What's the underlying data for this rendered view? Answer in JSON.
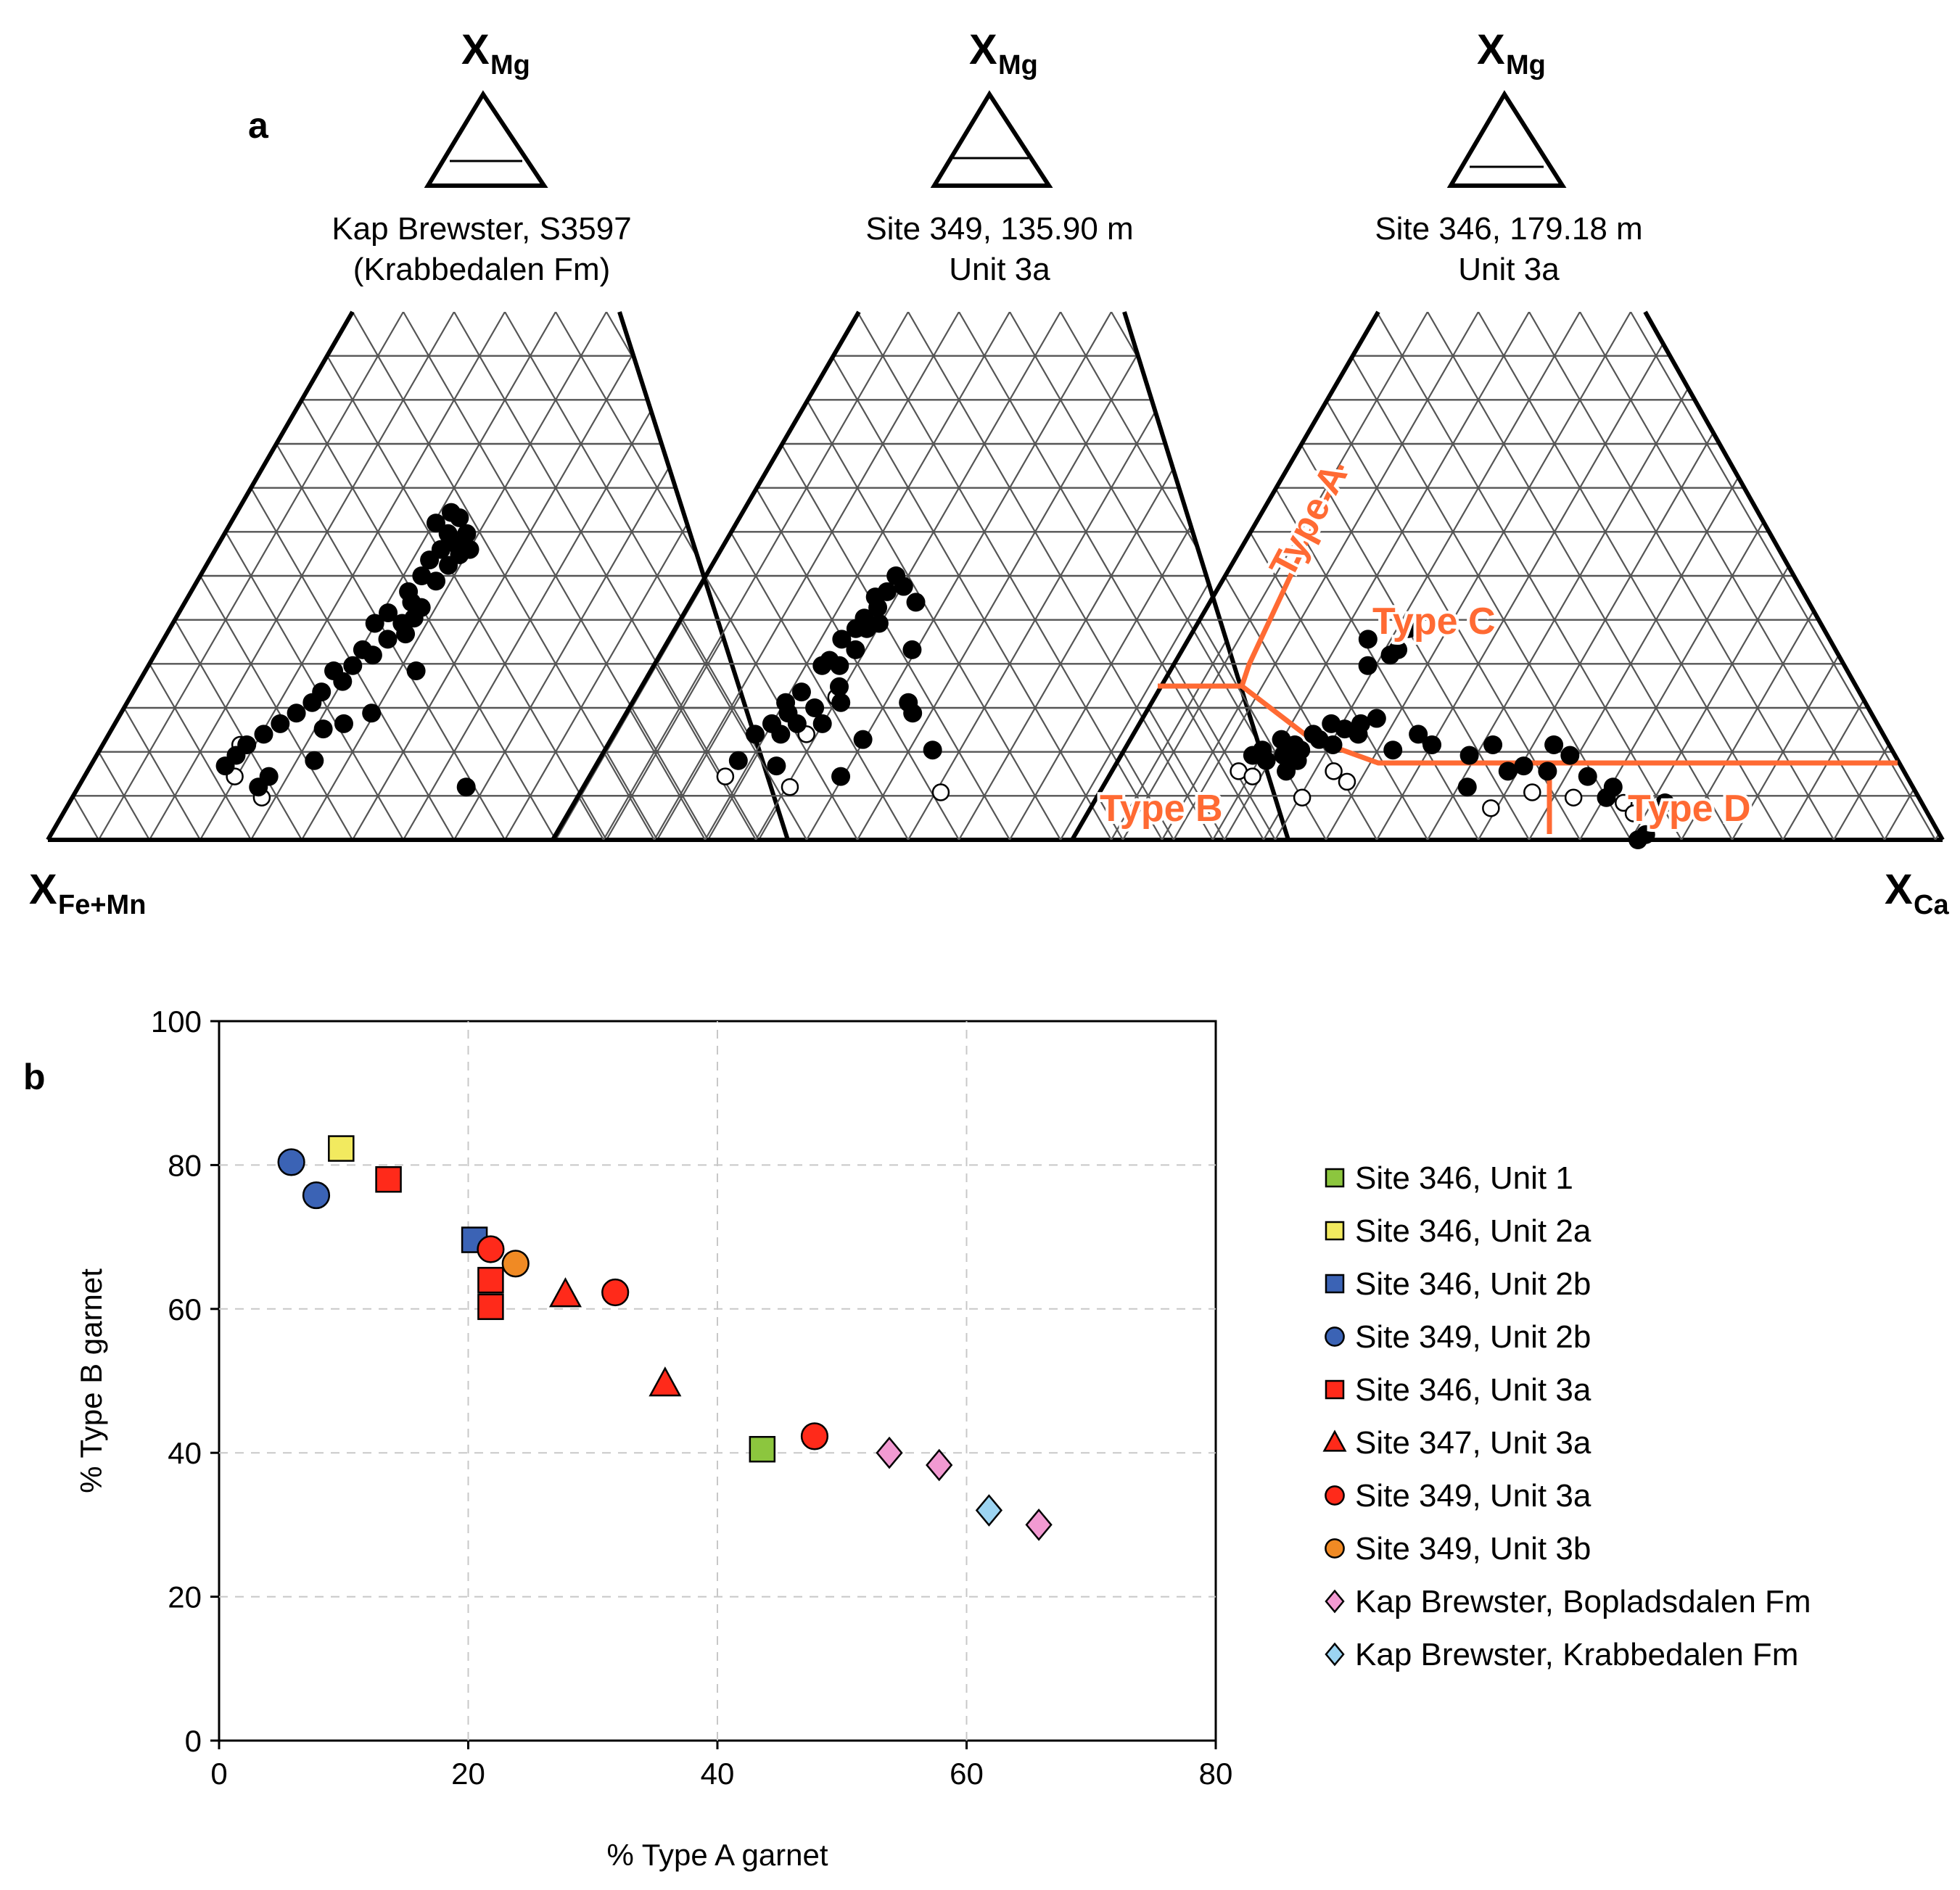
{
  "panel_a": {
    "letter": "a",
    "x_mg_main": "X",
    "x_mg_sub": "Mg",
    "apex_left_main": "X",
    "apex_left_sub": "Fe+Mn",
    "apex_right_main": "X",
    "apex_right_sub": "Ca",
    "titles": [
      {
        "line1": "Kap Brewster, S3597",
        "line2": "(Krabbedalen Fm)"
      },
      {
        "line1": "Site 349, 135.90 m",
        "line2": "Unit 3a"
      },
      {
        "line1": "Site 346, 179.18 m",
        "line2": "Unit 3a"
      }
    ],
    "type_labels": {
      "A": "Type A",
      "B": "Type B",
      "C": "Type C",
      "D": "Type D"
    },
    "colors": {
      "line": "#000000",
      "grid": "#555555",
      "boundary": "#ff6a33"
    },
    "ternary_points": [
      {
        "filled": [
          [
            0.5,
            0.61
          ],
          [
            0.52,
            0.58
          ],
          [
            0.48,
            0.58
          ],
          [
            0.53,
            0.55
          ],
          [
            0.5,
            0.56
          ],
          [
            0.47,
            0.55
          ],
          [
            0.49,
            0.52
          ],
          [
            0.45,
            0.53
          ],
          [
            0.44,
            0.5
          ],
          [
            0.47,
            0.49
          ],
          [
            0.42,
            0.47
          ],
          [
            0.43,
            0.45
          ],
          [
            0.45,
            0.44
          ],
          [
            0.39,
            0.43
          ],
          [
            0.42,
            0.41
          ],
          [
            0.44,
            0.42
          ],
          [
            0.4,
            0.38
          ],
          [
            0.36,
            0.36
          ],
          [
            0.38,
            0.35
          ],
          [
            0.35,
            0.33
          ],
          [
            0.32,
            0.32
          ],
          [
            0.34,
            0.3
          ],
          [
            0.31,
            0.28
          ],
          [
            0.3,
            0.26
          ],
          [
            0.28,
            0.24
          ],
          [
            0.26,
            0.22
          ],
          [
            0.24,
            0.2
          ],
          [
            0.22,
            0.18
          ],
          [
            0.21,
            0.16
          ],
          [
            0.2,
            0.14
          ],
          [
            0.33,
            0.21
          ],
          [
            0.27,
            0.12
          ],
          [
            0.26,
            0.1
          ],
          [
            0.4,
            0.24
          ],
          [
            0.36,
            0.22
          ],
          [
            0.46,
            0.32
          ],
          [
            0.33,
            0.15
          ],
          [
            0.56,
            0.1
          ],
          [
            0.45,
            0.6
          ],
          [
            0.48,
            0.62
          ],
          [
            0.51,
            0.54
          ],
          [
            0.37,
            0.41
          ],
          [
            0.43,
            0.39
          ]
        ],
        "open": [
          [
            0.22,
            0.12
          ],
          [
            0.27,
            0.08
          ],
          [
            0.24,
            0.2
          ],
          [
            0.21,
            0.18
          ]
        ]
      },
      {
        "filled": [
          [
            0.38,
            0.5
          ],
          [
            0.4,
            0.48
          ],
          [
            0.37,
            0.47
          ],
          [
            0.35,
            0.46
          ],
          [
            0.36,
            0.44
          ],
          [
            0.34,
            0.42
          ],
          [
            0.37,
            0.41
          ],
          [
            0.35,
            0.4
          ],
          [
            0.33,
            0.4
          ],
          [
            0.31,
            0.38
          ],
          [
            0.34,
            0.36
          ],
          [
            0.3,
            0.34
          ],
          [
            0.32,
            0.33
          ],
          [
            0.29,
            0.33
          ],
          [
            0.27,
            0.28
          ],
          [
            0.25,
            0.26
          ],
          [
            0.26,
            0.24
          ],
          [
            0.24,
            0.22
          ],
          [
            0.22,
            0.2
          ],
          [
            0.26,
            0.2
          ],
          [
            0.21,
            0.15
          ],
          [
            0.27,
            0.14
          ],
          [
            0.32,
            0.22
          ],
          [
            0.34,
            0.26
          ],
          [
            0.39,
            0.19
          ],
          [
            0.45,
            0.26
          ],
          [
            0.44,
            0.36
          ],
          [
            0.43,
            0.45
          ],
          [
            0.46,
            0.24
          ],
          [
            0.5,
            0.17
          ],
          [
            0.37,
            0.12
          ],
          [
            0.3,
            0.25
          ],
          [
            0.33,
            0.29
          ],
          [
            0.28,
            0.22
          ]
        ],
        "open": [
          [
            0.2,
            0.12
          ],
          [
            0.3,
            0.2
          ],
          [
            0.3,
            0.1
          ],
          [
            0.52,
            0.09
          ],
          [
            0.33,
            0.27
          ]
        ]
      },
      {
        "filled": [
          [
            0.18,
            0.17
          ],
          [
            0.2,
            0.19
          ],
          [
            0.22,
            0.18
          ],
          [
            0.24,
            0.2
          ],
          [
            0.26,
            0.22
          ],
          [
            0.28,
            0.21
          ],
          [
            0.21,
            0.16
          ],
          [
            0.19,
            0.15
          ],
          [
            0.17,
            0.16
          ],
          [
            0.23,
            0.17
          ],
          [
            0.25,
            0.19
          ],
          [
            0.3,
            0.22
          ],
          [
            0.32,
            0.23
          ],
          [
            0.27,
            0.18
          ],
          [
            0.23,
            0.15
          ],
          [
            0.28,
            0.38
          ],
          [
            0.29,
            0.33
          ],
          [
            0.32,
            0.35
          ],
          [
            0.34,
            0.4
          ],
          [
            0.38,
            0.2
          ],
          [
            0.4,
            0.18
          ],
          [
            0.45,
            0.16
          ],
          [
            0.48,
            0.18
          ],
          [
            0.52,
            0.14
          ],
          [
            0.55,
            0.13
          ],
          [
            0.56,
            0.18
          ],
          [
            0.58,
            0.16
          ],
          [
            0.6,
            0.12
          ],
          [
            0.63,
            0.1
          ],
          [
            0.62,
            0.08
          ],
          [
            0.65,
            0.0
          ],
          [
            0.66,
            0.01
          ],
          [
            0.69,
            0.07
          ],
          [
            0.5,
            0.13
          ],
          [
            0.45,
            0.1
          ],
          [
            0.33,
            0.36
          ],
          [
            0.3,
            0.2
          ],
          [
            0.22,
            0.13
          ],
          [
            0.35,
            0.17
          ]
        ],
        "open": [
          [
            0.16,
            0.13
          ],
          [
            0.18,
            0.12
          ],
          [
            0.25,
            0.08
          ],
          [
            0.28,
            0.13
          ],
          [
            0.3,
            0.11
          ],
          [
            0.48,
            0.06
          ],
          [
            0.53,
            0.09
          ],
          [
            0.58,
            0.08
          ],
          [
            0.64,
            0.07
          ],
          [
            0.65,
            0.05
          ]
        ]
      }
    ]
  },
  "panel_b": {
    "letter": "b"
  },
  "chart_data": {
    "type": "scatter",
    "title": "",
    "xlabel": "% Type A garnet",
    "ylabel": "% Type B garnet",
    "xlim": [
      0,
      80
    ],
    "ylim": [
      0,
      100
    ],
    "xticks": [
      0,
      20,
      40,
      60,
      80
    ],
    "yticks": [
      0,
      20,
      40,
      60,
      80,
      100
    ],
    "xtick_labels": [
      "0",
      "20",
      "40",
      "60",
      "80"
    ],
    "ytick_labels": [
      "0",
      "20",
      "40",
      "60",
      "80",
      "100"
    ],
    "grid": true,
    "legend_position": "right",
    "series": [
      {
        "name": "Site 346, Unit 1",
        "marker": "square",
        "color": "#8cc63e",
        "points": [
          [
            43.6,
            40.5
          ]
        ]
      },
      {
        "name": "Site 346, Unit 2a",
        "marker": "square",
        "color": "#f2ea5f",
        "points": [
          [
            9.8,
            82.3
          ]
        ]
      },
      {
        "name": "Site 346, Unit 2b",
        "marker": "square",
        "color": "#3b63b5",
        "points": [
          [
            20.5,
            69.6
          ]
        ]
      },
      {
        "name": "Site 349, Unit 2b",
        "marker": "circle",
        "color": "#3b63b5",
        "points": [
          [
            5.8,
            80.4
          ],
          [
            7.8,
            75.8
          ]
        ]
      },
      {
        "name": "Site 346, Unit 3a",
        "marker": "square",
        "color": "#ff2a1a",
        "points": [
          [
            13.6,
            78.0
          ],
          [
            21.8,
            64.0
          ],
          [
            21.8,
            60.3
          ]
        ]
      },
      {
        "name": "Site 347, Unit 3a",
        "marker": "triangle",
        "color": "#ff2a1a",
        "points": [
          [
            27.8,
            62.0
          ],
          [
            35.8,
            49.6
          ]
        ]
      },
      {
        "name": "Site 349, Unit 3a",
        "marker": "circle",
        "color": "#ff2a1a",
        "points": [
          [
            21.8,
            68.3
          ],
          [
            31.8,
            62.3
          ],
          [
            47.8,
            42.3
          ]
        ]
      },
      {
        "name": "Site 349, Unit 3b",
        "marker": "circle",
        "color": "#f08a24",
        "points": [
          [
            23.8,
            66.3
          ]
        ]
      },
      {
        "name": "Kap Brewster, Bopladsdalen Fm",
        "marker": "diamond",
        "color": "#f29ad2",
        "points": [
          [
            53.8,
            40.0
          ],
          [
            57.8,
            38.3
          ],
          [
            65.8,
            30.0
          ]
        ]
      },
      {
        "name": "Kap Brewster, Krabbedalen Fm",
        "marker": "diamond",
        "color": "#9cd4f2",
        "points": [
          [
            61.8,
            32.0
          ]
        ]
      }
    ]
  }
}
